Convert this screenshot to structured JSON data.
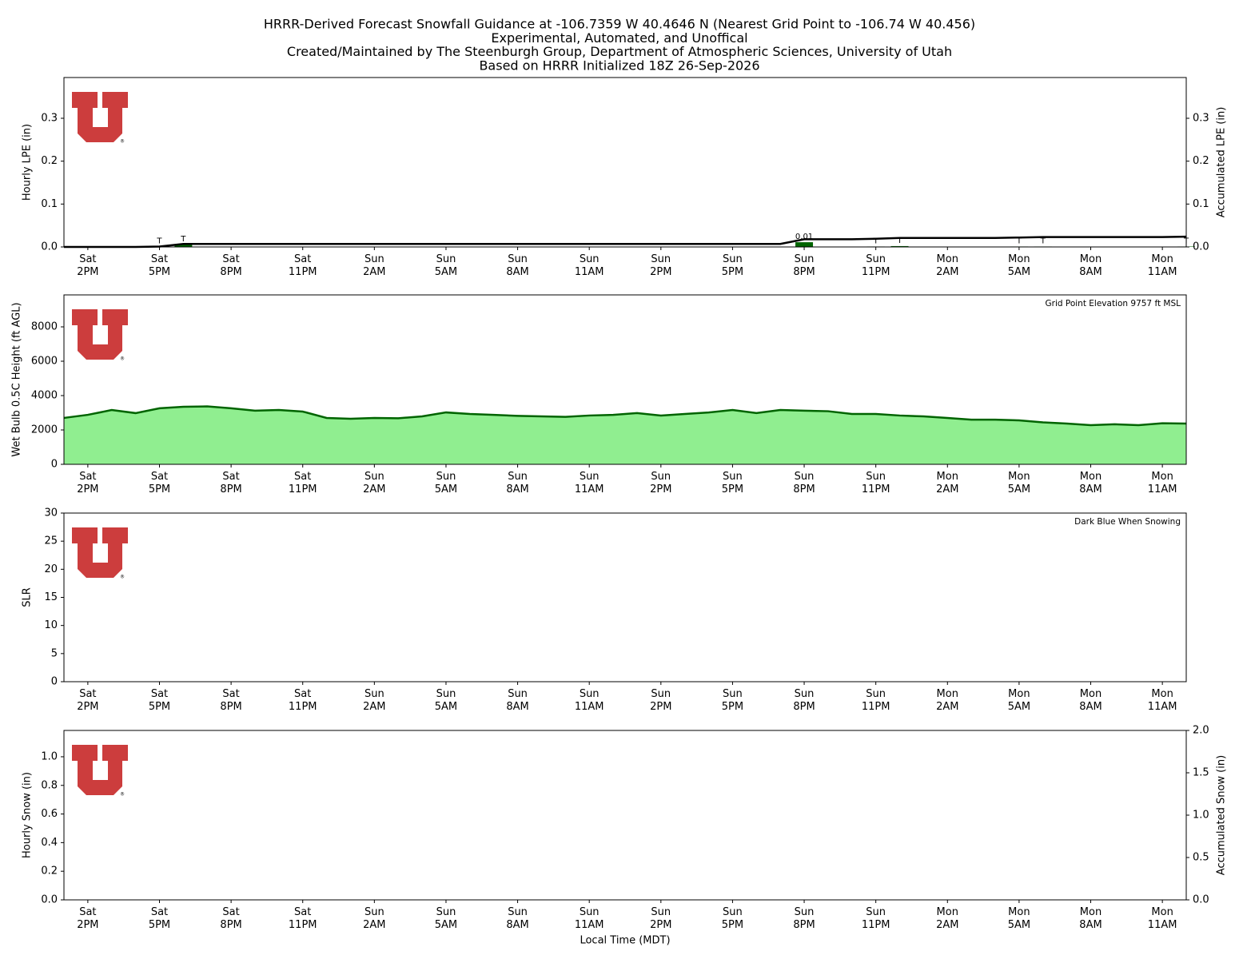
{
  "title": [
    "HRRR-Derived Forecast Snowfall Guidance at -106.7359 W 40.4646 N (Nearest Grid Point to -106.74 W 40.456)",
    "Experimental, Automated, and Unoffical",
    "Created/Maintained by The Steenburgh Group, Department of Atmospheric Sciences, University of Utah",
    "Based on HRRR Initialized 18Z 26-Sep-2026"
  ],
  "chart_data": [
    {
      "type": "bar",
      "ylabel": "Hourly LPE (in)",
      "y2label": "Accumulated LPE (in)",
      "categories": [
        null,
        "Sat\n2PM",
        null,
        null,
        "Sat\n5PM",
        null,
        null,
        "Sat\n8PM",
        null,
        null,
        "Sat\n11PM",
        null,
        null,
        "Sun\n2AM",
        null,
        null,
        "Sun\n5AM",
        null,
        null,
        "Sun\n8AM",
        null,
        null,
        "Sun\n11AM",
        null,
        null,
        "Sun\n2PM",
        null,
        null,
        "Sun\n5PM",
        null,
        null,
        "Sun\n8PM",
        null,
        null,
        "Sun\n11PM",
        null,
        null,
        "Mon\n2AM",
        null,
        null,
        "Mon\n5AM",
        null,
        null,
        "Mon\n8AM",
        null,
        null,
        "Mon\n11AM",
        null
      ],
      "ylim": [
        0,
        0.395
      ],
      "yticks": [
        {
          "value": 0,
          "label": "0.0"
        },
        0.1,
        0.2,
        0.3
      ],
      "y2lim": [
        0,
        0.395
      ],
      "y2ticks": [
        {
          "value": 0,
          "label": "0.0"
        },
        0.1,
        0.2,
        0.3
      ],
      "series": [
        {
          "color": "#006400",
          "values": [
            0,
            0,
            0,
            0,
            0.001,
            0.006,
            0,
            0,
            0,
            0,
            0,
            0,
            0,
            0,
            0,
            0,
            0,
            0,
            0,
            0,
            0,
            0,
            0,
            0,
            0,
            0,
            0,
            0,
            0,
            0,
            0,
            0.011,
            0,
            0,
            0.001,
            0.002,
            0,
            0,
            0,
            0,
            0.001,
            0.001,
            0,
            0,
            0,
            0,
            0,
            0.001
          ],
          "value_labels": [
            null,
            null,
            null,
            null,
            "T",
            "T",
            null,
            null,
            null,
            null,
            null,
            null,
            null,
            null,
            null,
            null,
            null,
            null,
            null,
            null,
            null,
            null,
            null,
            null,
            null,
            null,
            null,
            null,
            null,
            null,
            null,
            "0.01",
            null,
            null,
            "T",
            "T",
            null,
            null,
            null,
            null,
            "T",
            "T",
            null,
            null,
            null,
            null,
            null,
            "T"
          ]
        },
        {
          "type": "line",
          "axis": "y2",
          "color": "#000000",
          "values": [
            0,
            0,
            0,
            0,
            0.001,
            0.007,
            0.007,
            0.007,
            0.007,
            0.007,
            0.007,
            0.007,
            0.007,
            0.007,
            0.007,
            0.007,
            0.007,
            0.007,
            0.007,
            0.007,
            0.007,
            0.007,
            0.007,
            0.007,
            0.007,
            0.007,
            0.007,
            0.007,
            0.007,
            0.007,
            0.007,
            0.018,
            0.018,
            0.018,
            0.019,
            0.021,
            0.021,
            0.021,
            0.021,
            0.021,
            0.022,
            0.023,
            0.023,
            0.023,
            0.023,
            0.023,
            0.023,
            0.024
          ]
        }
      ]
    },
    {
      "type": "area",
      "ylabel": "Wet Bulb 0.5C Height (ft AGL)",
      "annotation": "Grid Point Elevation 9757 ft MSL",
      "categories": [
        null,
        "Sat\n2PM",
        null,
        null,
        "Sat\n5PM",
        null,
        null,
        "Sat\n8PM",
        null,
        null,
        "Sat\n11PM",
        null,
        null,
        "Sun\n2AM",
        null,
        null,
        "Sun\n5AM",
        null,
        null,
        "Sun\n8AM",
        null,
        null,
        "Sun\n11AM",
        null,
        null,
        "Sun\n2PM",
        null,
        null,
        "Sun\n5PM",
        null,
        null,
        "Sun\n8PM",
        null,
        null,
        "Sun\n11PM",
        null,
        null,
        "Mon\n2AM",
        null,
        null,
        "Mon\n5AM",
        null,
        null,
        "Mon\n8AM",
        null,
        null,
        "Mon\n11AM",
        null
      ],
      "ylim": [
        0,
        9860
      ],
      "yticks": [
        0,
        2000,
        4000,
        6000,
        8000
      ],
      "series": [
        {
          "color": "#90ee90",
          "line_color": "#006400",
          "values": [
            2700,
            2880,
            3160,
            2980,
            3260,
            3350,
            3370,
            3260,
            3120,
            3160,
            3070,
            2700,
            2650,
            2700,
            2680,
            2790,
            3020,
            2930,
            2880,
            2820,
            2790,
            2760,
            2840,
            2880,
            2980,
            2840,
            2930,
            3020,
            3160,
            2980,
            3160,
            3120,
            3090,
            2930,
            2930,
            2840,
            2790,
            2700,
            2600,
            2600,
            2560,
            2440,
            2370,
            2280,
            2330,
            2280,
            2390,
            2370
          ]
        }
      ]
    },
    {
      "type": "line",
      "ylabel": "SLR",
      "annotation": "Dark Blue When Snowing",
      "categories": [
        null,
        "Sat\n2PM",
        null,
        null,
        "Sat\n5PM",
        null,
        null,
        "Sat\n8PM",
        null,
        null,
        "Sat\n11PM",
        null,
        null,
        "Sun\n2AM",
        null,
        null,
        "Sun\n5AM",
        null,
        null,
        "Sun\n8AM",
        null,
        null,
        "Sun\n11AM",
        null,
        null,
        "Sun\n2PM",
        null,
        null,
        "Sun\n5PM",
        null,
        null,
        "Sun\n8PM",
        null,
        null,
        "Sun\n11PM",
        null,
        null,
        "Mon\n2AM",
        null,
        null,
        "Mon\n5AM",
        null,
        null,
        "Mon\n8AM",
        null,
        null,
        "Mon\n11AM",
        null
      ],
      "ylim": [
        0,
        30
      ],
      "yticks": [
        0,
        5,
        10,
        15,
        20,
        25,
        30
      ],
      "series": []
    },
    {
      "type": "bar",
      "ylabel": "Hourly Snow (in)",
      "y2label": "Accumulated Snow (in)",
      "xlabel": "Local Time (MDT)",
      "categories": [
        null,
        "Sat\n2PM",
        null,
        null,
        "Sat\n5PM",
        null,
        null,
        "Sat\n8PM",
        null,
        null,
        "Sat\n11PM",
        null,
        null,
        "Sun\n2AM",
        null,
        null,
        "Sun\n5AM",
        null,
        null,
        "Sun\n8AM",
        null,
        null,
        "Sun\n11AM",
        null,
        null,
        "Sun\n2PM",
        null,
        null,
        "Sun\n5PM",
        null,
        null,
        "Sun\n8PM",
        null,
        null,
        "Sun\n11PM",
        null,
        null,
        "Mon\n2AM",
        null,
        null,
        "Mon\n5AM",
        null,
        null,
        "Mon\n8AM",
        null,
        null,
        "Mon\n11AM",
        null
      ],
      "ylim": [
        0,
        1.184
      ],
      "yticks": [
        {
          "value": 0,
          "label": "0.0"
        },
        0.2,
        0.4,
        0.6,
        0.8,
        {
          "value": 1,
          "label": "1.0"
        }
      ],
      "y2lim": [
        0,
        2
      ],
      "y2ticks": [
        {
          "value": 0,
          "label": "0.0"
        },
        0.5,
        {
          "value": 1,
          "label": "1.0"
        },
        1.5,
        {
          "value": 2,
          "label": "2.0"
        }
      ],
      "series": []
    }
  ]
}
